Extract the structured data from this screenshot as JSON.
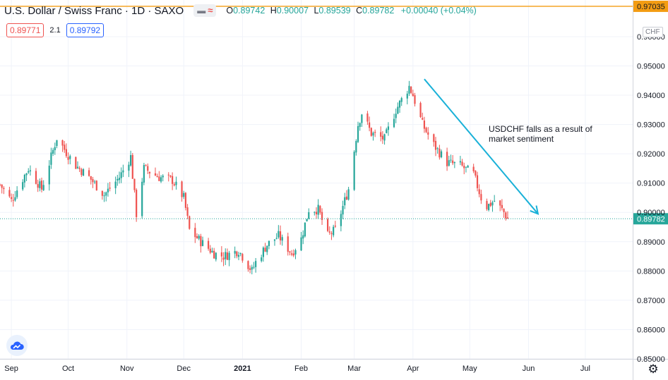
{
  "legend": {
    "title": "U.S. Dollar / Swiss Franc · 1D · SAXO",
    "o_label": "O",
    "o_value": "0.89742",
    "h_label": "H",
    "h_value": "0.90007",
    "l_label": "L",
    "l_value": "0.89539",
    "c_label": "C",
    "c_value": "0.89782",
    "change": "+0.00040 (+0.04%)"
  },
  "trade": {
    "sell": "0.89771",
    "spread": "2.1",
    "buy": "0.89792"
  },
  "currency_label": "CHF",
  "annotation": {
    "line1": "USDCHF falls as a result of",
    "line2": "market sentiment"
  },
  "colors": {
    "up": "#26a69a",
    "down": "#ef5350",
    "arrow": "#1ab1d8",
    "top_line": "#f39c12",
    "grid": "#f0f3fa"
  },
  "icons": {
    "visibility": "eye-icon",
    "indicator": "wave-icon",
    "logo": "tradingview-cloud-icon",
    "settings": "gear-icon"
  },
  "chart_data": {
    "type": "candlestick",
    "symbol": "USDCHF",
    "timeframe": "1D",
    "ylim": [
      0.85,
      0.9725
    ],
    "ticks_y": [
      "0.85000",
      "0.86000",
      "0.87000",
      "0.88000",
      "0.89000",
      "0.90000",
      "0.91000",
      "0.92000",
      "0.93000",
      "0.94000",
      "0.95000",
      "0.96000"
    ],
    "xlim": [
      "2020-08-26",
      "2021-07-26"
    ],
    "ticks_x": [
      {
        "date": "2020-09-01",
        "label": "Sep"
      },
      {
        "date": "2020-10-01",
        "label": "Oct"
      },
      {
        "date": "2020-11-01",
        "label": "Nov"
      },
      {
        "date": "2020-12-01",
        "label": "Dec"
      },
      {
        "date": "2021-01-01",
        "label": "2021"
      },
      {
        "date": "2021-02-01",
        "label": "Feb"
      },
      {
        "date": "2021-03-01",
        "label": "Mar"
      },
      {
        "date": "2021-04-01",
        "label": "Apr"
      },
      {
        "date": "2021-05-01",
        "label": "May"
      },
      {
        "date": "2021-06-01",
        "label": "Jun"
      },
      {
        "date": "2021-07-01",
        "label": "Jul"
      }
    ],
    "last_price": 0.89782,
    "last_price_label": "0.89782",
    "top_line_value": 0.97035,
    "top_line_label": "0.97035",
    "close_path": [
      {
        "date": "2020-08-26",
        "value": 0.9095
      },
      {
        "date": "2020-09-01",
        "value": 0.904
      },
      {
        "date": "2020-09-07",
        "value": 0.9115
      },
      {
        "date": "2020-09-10",
        "value": 0.915
      },
      {
        "date": "2020-09-17",
        "value": 0.908
      },
      {
        "date": "2020-09-25",
        "value": 0.9255
      },
      {
        "date": "2020-09-30",
        "value": 0.9205
      },
      {
        "date": "2020-10-05",
        "value": 0.916
      },
      {
        "date": "2020-10-12",
        "value": 0.912
      },
      {
        "date": "2020-10-20",
        "value": 0.906
      },
      {
        "date": "2020-10-28",
        "value": 0.912
      },
      {
        "date": "2020-11-03",
        "value": 0.919
      },
      {
        "date": "2020-11-06",
        "value": 0.8995
      },
      {
        "date": "2020-11-10",
        "value": 0.915
      },
      {
        "date": "2020-11-18",
        "value": 0.912
      },
      {
        "date": "2020-11-25",
        "value": 0.911
      },
      {
        "date": "2020-12-01",
        "value": 0.905
      },
      {
        "date": "2020-12-04",
        "value": 0.894
      },
      {
        "date": "2020-12-10",
        "value": 0.89
      },
      {
        "date": "2020-12-17",
        "value": 0.886
      },
      {
        "date": "2020-12-22",
        "value": 0.885
      },
      {
        "date": "2020-12-30",
        "value": 0.887
      },
      {
        "date": "2021-01-06",
        "value": 0.88
      },
      {
        "date": "2021-01-08",
        "value": 0.883
      },
      {
        "date": "2021-01-14",
        "value": 0.889
      },
      {
        "date": "2021-01-20",
        "value": 0.892
      },
      {
        "date": "2021-01-27",
        "value": 0.886
      },
      {
        "date": "2021-02-01",
        "value": 0.891
      },
      {
        "date": "2021-02-05",
        "value": 0.901
      },
      {
        "date": "2021-02-10",
        "value": 0.901
      },
      {
        "date": "2021-02-15",
        "value": 0.892
      },
      {
        "date": "2021-02-19",
        "value": 0.894
      },
      {
        "date": "2021-02-26",
        "value": 0.908
      },
      {
        "date": "2021-03-03",
        "value": 0.93
      },
      {
        "date": "2021-03-05",
        "value": 0.934
      },
      {
        "date": "2021-03-10",
        "value": 0.927
      },
      {
        "date": "2021-03-17",
        "value": 0.925
      },
      {
        "date": "2021-03-23",
        "value": 0.935
      },
      {
        "date": "2021-03-30",
        "value": 0.943
      },
      {
        "date": "2021-04-01",
        "value": 0.94
      },
      {
        "date": "2021-04-06",
        "value": 0.93
      },
      {
        "date": "2021-04-12",
        "value": 0.923
      },
      {
        "date": "2021-04-19",
        "value": 0.917
      },
      {
        "date": "2021-04-26",
        "value": 0.916
      },
      {
        "date": "2021-05-03",
        "value": 0.913
      },
      {
        "date": "2021-05-07",
        "value": 0.905
      },
      {
        "date": "2021-05-10",
        "value": 0.902
      },
      {
        "date": "2021-05-14",
        "value": 0.904
      },
      {
        "date": "2021-05-19",
        "value": 0.9
      },
      {
        "date": "2021-05-21",
        "value": 0.8978
      }
    ],
    "annotation_arrow": {
      "start": {
        "date": "2021-04-07",
        "value": 0.9455
      },
      "end": {
        "date": "2021-06-06",
        "value": 0.8995
      }
    }
  }
}
